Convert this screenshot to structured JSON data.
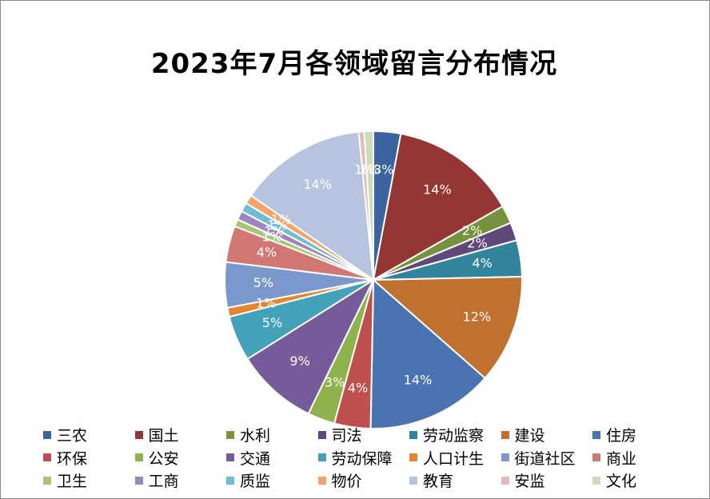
{
  "chart_data": {
    "type": "pie",
    "title": "2023年7月各领域留言分布情况",
    "slices": [
      {
        "label": "三农",
        "value": 3,
        "display": "3%",
        "color": "#3b63a0"
      },
      {
        "label": "国土",
        "value": 14,
        "display": "14%",
        "color": "#943634"
      },
      {
        "label": "水利",
        "value": 2,
        "display": "2%",
        "color": "#76923c"
      },
      {
        "label": "司法",
        "value": 2,
        "display": "2%",
        "color": "#5f497a"
      },
      {
        "label": "劳动监察",
        "value": 4,
        "display": "4%",
        "color": "#31849b"
      },
      {
        "label": "建设",
        "value": 12,
        "display": "12%",
        "color": "#c0702f"
      },
      {
        "label": "住房",
        "value": 14,
        "display": "14%",
        "color": "#4a74b1"
      },
      {
        "label": "环保",
        "value": 4,
        "display": "4%",
        "color": "#c0504d"
      },
      {
        "label": "公安",
        "value": 3,
        "display": "3%",
        "color": "#8fb24d"
      },
      {
        "label": "交通",
        "value": 9,
        "display": "9%",
        "color": "#765b9b"
      },
      {
        "label": "劳动保障",
        "value": 5,
        "display": "5%",
        "color": "#43a1ba"
      },
      {
        "label": "人口计生",
        "value": 1,
        "display": "1%",
        "color": "#e7852c"
      },
      {
        "label": "街道社区",
        "value": 5,
        "display": "5%",
        "color": "#7b98cc"
      },
      {
        "label": "商业",
        "value": 4,
        "display": "4%",
        "color": "#d17875"
      },
      {
        "label": "卫生",
        "value": 0.8,
        "display": "1%",
        "color": "#a9c476"
      },
      {
        "label": "工商",
        "value": 1,
        "display": "1%",
        "color": "#9d86bb"
      },
      {
        "label": "质监",
        "value": 1,
        "display": "1%",
        "color": "#6ebdd4"
      },
      {
        "label": "物价",
        "value": 1,
        "display": "1%",
        "color": "#f4a46a"
      },
      {
        "label": "教育",
        "value": 14,
        "display": "14%",
        "color": "#b7c4e0"
      },
      {
        "label": "安监",
        "value": 0.6,
        "display": "1%",
        "color": "#e4b9b8"
      },
      {
        "label": "文化",
        "value": 1,
        "display": "1%",
        "color": "#cddcb8"
      }
    ],
    "legend_position": "bottom"
  }
}
